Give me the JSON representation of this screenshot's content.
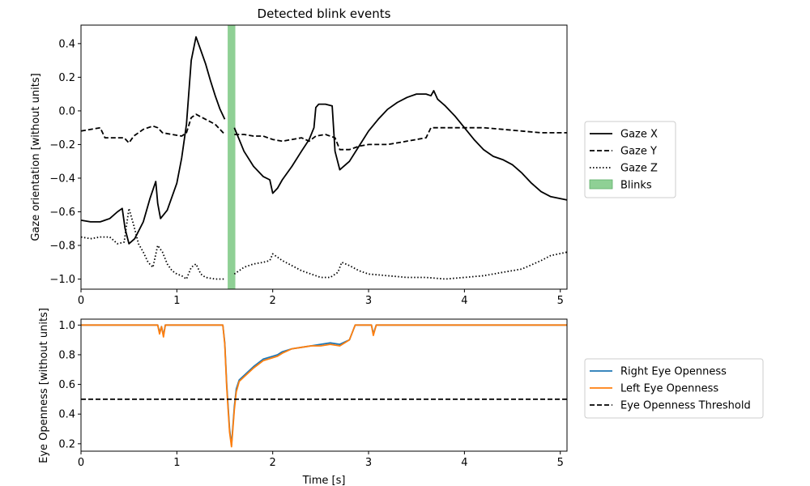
{
  "chart_data": [
    {
      "type": "line",
      "title": "Detected blink events",
      "xlabel": "",
      "ylabel": "Gaze orientation [without units]",
      "xlim": [
        0,
        5.07
      ],
      "ylim": [
        -1.06,
        0.51
      ],
      "xticks": [
        0,
        1,
        2,
        3,
        4,
        5
      ],
      "yticks": [
        -1.0,
        -0.8,
        -0.6,
        -0.4,
        -0.2,
        0.0,
        0.2,
        0.4
      ],
      "grid": false,
      "legend": "outside-right",
      "legend_labels": [
        "Gaze X",
        "Gaze Y",
        "Gaze Z",
        "Blinks"
      ],
      "series": [
        {
          "name": "Gaze X",
          "style": "solid",
          "color": "#000000",
          "segments": [
            [
              [
                0,
                -0.65
              ],
              [
                0.1,
                -0.66
              ],
              [
                0.2,
                -0.66
              ],
              [
                0.3,
                -0.64
              ],
              [
                0.38,
                -0.6
              ],
              [
                0.43,
                -0.58
              ],
              [
                0.46,
                -0.7
              ],
              [
                0.5,
                -0.79
              ],
              [
                0.56,
                -0.76
              ],
              [
                0.65,
                -0.66
              ],
              [
                0.72,
                -0.52
              ],
              [
                0.78,
                -0.42
              ],
              [
                0.8,
                -0.55
              ],
              [
                0.83,
                -0.64
              ],
              [
                0.9,
                -0.59
              ],
              [
                1.0,
                -0.43
              ],
              [
                1.05,
                -0.28
              ],
              [
                1.1,
                -0.08
              ],
              [
                1.15,
                0.3
              ],
              [
                1.2,
                0.44
              ],
              [
                1.25,
                0.36
              ],
              [
                1.3,
                0.28
              ],
              [
                1.35,
                0.18
              ],
              [
                1.4,
                0.09
              ],
              [
                1.45,
                0.01
              ],
              [
                1.5,
                -0.05
              ]
            ],
            [
              [
                1.6,
                -0.1
              ],
              [
                1.65,
                -0.17
              ],
              [
                1.7,
                -0.24
              ],
              [
                1.8,
                -0.33
              ],
              [
                1.9,
                -0.39
              ],
              [
                1.97,
                -0.41
              ],
              [
                2.0,
                -0.49
              ],
              [
                2.05,
                -0.46
              ],
              [
                2.1,
                -0.41
              ],
              [
                2.2,
                -0.33
              ],
              [
                2.3,
                -0.24
              ],
              [
                2.38,
                -0.17
              ],
              [
                2.43,
                -0.1
              ],
              [
                2.45,
                0.02
              ],
              [
                2.48,
                0.04
              ],
              [
                2.55,
                0.04
              ],
              [
                2.62,
                0.03
              ],
              [
                2.65,
                -0.24
              ],
              [
                2.7,
                -0.35
              ],
              [
                2.8,
                -0.3
              ],
              [
                2.9,
                -0.21
              ],
              [
                3.0,
                -0.12
              ],
              [
                3.1,
                -0.05
              ],
              [
                3.2,
                0.01
              ],
              [
                3.3,
                0.05
              ],
              [
                3.4,
                0.08
              ],
              [
                3.5,
                0.1
              ],
              [
                3.6,
                0.1
              ],
              [
                3.65,
                0.09
              ],
              [
                3.68,
                0.12
              ],
              [
                3.72,
                0.07
              ],
              [
                3.8,
                0.03
              ],
              [
                3.9,
                -0.03
              ],
              [
                4.0,
                -0.1
              ],
              [
                4.1,
                -0.17
              ],
              [
                4.2,
                -0.23
              ],
              [
                4.3,
                -0.27
              ],
              [
                4.4,
                -0.29
              ],
              [
                4.5,
                -0.32
              ],
              [
                4.6,
                -0.37
              ],
              [
                4.7,
                -0.43
              ],
              [
                4.8,
                -0.48
              ],
              [
                4.9,
                -0.51
              ],
              [
                5.07,
                -0.53
              ]
            ]
          ]
        },
        {
          "name": "Gaze Y",
          "style": "dashed",
          "color": "#000000",
          "segments": [
            [
              [
                0,
                -0.12
              ],
              [
                0.1,
                -0.11
              ],
              [
                0.2,
                -0.1
              ],
              [
                0.25,
                -0.16
              ],
              [
                0.35,
                -0.16
              ],
              [
                0.45,
                -0.16
              ],
              [
                0.5,
                -0.19
              ],
              [
                0.55,
                -0.15
              ],
              [
                0.65,
                -0.11
              ],
              [
                0.75,
                -0.09
              ],
              [
                0.8,
                -0.1
              ],
              [
                0.85,
                -0.13
              ],
              [
                0.95,
                -0.14
              ],
              [
                1.05,
                -0.15
              ],
              [
                1.1,
                -0.13
              ],
              [
                1.15,
                -0.04
              ],
              [
                1.2,
                -0.02
              ],
              [
                1.3,
                -0.05
              ],
              [
                1.4,
                -0.08
              ],
              [
                1.5,
                -0.14
              ]
            ],
            [
              [
                1.6,
                -0.14
              ],
              [
                1.7,
                -0.14
              ],
              [
                1.8,
                -0.15
              ],
              [
                1.9,
                -0.15
              ],
              [
                2.0,
                -0.17
              ],
              [
                2.1,
                -0.18
              ],
              [
                2.2,
                -0.17
              ],
              [
                2.3,
                -0.16
              ],
              [
                2.38,
                -0.18
              ],
              [
                2.45,
                -0.15
              ],
              [
                2.55,
                -0.14
              ],
              [
                2.65,
                -0.16
              ],
              [
                2.7,
                -0.23
              ],
              [
                2.8,
                -0.23
              ],
              [
                2.9,
                -0.21
              ],
              [
                3.0,
                -0.2
              ],
              [
                3.2,
                -0.2
              ],
              [
                3.4,
                -0.18
              ],
              [
                3.5,
                -0.17
              ],
              [
                3.6,
                -0.16
              ],
              [
                3.65,
                -0.1
              ],
              [
                3.8,
                -0.1
              ],
              [
                4.0,
                -0.1
              ],
              [
                4.2,
                -0.1
              ],
              [
                4.4,
                -0.11
              ],
              [
                4.6,
                -0.12
              ],
              [
                4.8,
                -0.13
              ],
              [
                5.07,
                -0.13
              ]
            ]
          ]
        },
        {
          "name": "Gaze Z",
          "style": "dotted",
          "color": "#000000",
          "segments": [
            [
              [
                0,
                -0.75
              ],
              [
                0.1,
                -0.76
              ],
              [
                0.2,
                -0.75
              ],
              [
                0.3,
                -0.75
              ],
              [
                0.38,
                -0.79
              ],
              [
                0.45,
                -0.78
              ],
              [
                0.5,
                -0.58
              ],
              [
                0.55,
                -0.68
              ],
              [
                0.6,
                -0.79
              ],
              [
                0.65,
                -0.84
              ],
              [
                0.7,
                -0.9
              ],
              [
                0.75,
                -0.93
              ],
              [
                0.8,
                -0.8
              ],
              [
                0.85,
                -0.84
              ],
              [
                0.9,
                -0.91
              ],
              [
                0.95,
                -0.95
              ],
              [
                1.0,
                -0.97
              ],
              [
                1.05,
                -0.98
              ],
              [
                1.1,
                -1.0
              ],
              [
                1.15,
                -0.93
              ],
              [
                1.2,
                -0.91
              ],
              [
                1.25,
                -0.97
              ],
              [
                1.3,
                -0.99
              ],
              [
                1.4,
                -1.0
              ],
              [
                1.5,
                -1.0
              ]
            ],
            [
              [
                1.6,
                -0.97
              ],
              [
                1.7,
                -0.93
              ],
              [
                1.8,
                -0.91
              ],
              [
                1.9,
                -0.9
              ],
              [
                1.97,
                -0.89
              ],
              [
                2.0,
                -0.85
              ],
              [
                2.1,
                -0.89
              ],
              [
                2.2,
                -0.92
              ],
              [
                2.3,
                -0.95
              ],
              [
                2.4,
                -0.97
              ],
              [
                2.5,
                -0.99
              ],
              [
                2.6,
                -0.99
              ],
              [
                2.68,
                -0.96
              ],
              [
                2.72,
                -0.9
              ],
              [
                2.8,
                -0.92
              ],
              [
                2.9,
                -0.95
              ],
              [
                3.0,
                -0.97
              ],
              [
                3.2,
                -0.98
              ],
              [
                3.4,
                -0.99
              ],
              [
                3.6,
                -0.99
              ],
              [
                3.8,
                -1.0
              ],
              [
                4.0,
                -0.99
              ],
              [
                4.2,
                -0.98
              ],
              [
                4.4,
                -0.96
              ],
              [
                4.6,
                -0.94
              ],
              [
                4.8,
                -0.89
              ],
              [
                4.9,
                -0.86
              ],
              [
                5.07,
                -0.84
              ]
            ]
          ]
        }
      ],
      "blink_spans": [
        [
          1.53,
          1.61
        ]
      ],
      "blink_color": "#8fd095"
    },
    {
      "type": "line",
      "title": "",
      "xlabel": "Time [s]",
      "ylabel": "Eye Openness [without units]",
      "xlim": [
        0,
        5.07
      ],
      "ylim": [
        0.15,
        1.04
      ],
      "xticks": [
        0,
        1,
        2,
        3,
        4,
        5
      ],
      "yticks": [
        0.2,
        0.4,
        0.6,
        0.8,
        1.0
      ],
      "grid": false,
      "legend": "outside-right",
      "legend_labels": [
        "Right Eye Openness",
        "Left Eye Openness",
        "Eye Openness Threshold"
      ],
      "threshold": 0.5,
      "series": [
        {
          "name": "Right Eye Openness",
          "color": "#1f77b4",
          "points": [
            [
              0,
              1.0
            ],
            [
              0.8,
              1.0
            ],
            [
              0.82,
              0.95
            ],
            [
              0.84,
              0.99
            ],
            [
              0.86,
              0.93
            ],
            [
              0.88,
              1.0
            ],
            [
              1.48,
              1.0
            ],
            [
              1.5,
              0.88
            ],
            [
              1.52,
              0.6
            ],
            [
              1.55,
              0.3
            ],
            [
              1.57,
              0.19
            ],
            [
              1.6,
              0.45
            ],
            [
              1.62,
              0.57
            ],
            [
              1.65,
              0.63
            ],
            [
              1.7,
              0.66
            ],
            [
              1.8,
              0.72
            ],
            [
              1.9,
              0.77
            ],
            [
              2.0,
              0.79
            ],
            [
              2.05,
              0.8
            ],
            [
              2.1,
              0.82
            ],
            [
              2.2,
              0.84
            ],
            [
              2.3,
              0.85
            ],
            [
              2.4,
              0.86
            ],
            [
              2.5,
              0.87
            ],
            [
              2.6,
              0.88
            ],
            [
              2.7,
              0.87
            ],
            [
              2.8,
              0.9
            ],
            [
              2.86,
              1.0
            ],
            [
              3.03,
              1.0
            ],
            [
              3.05,
              0.94
            ],
            [
              3.08,
              1.0
            ],
            [
              5.07,
              1.0
            ]
          ]
        },
        {
          "name": "Left Eye Openness",
          "color": "#ff7f0e",
          "points": [
            [
              0,
              1.0
            ],
            [
              0.8,
              1.0
            ],
            [
              0.82,
              0.94
            ],
            [
              0.84,
              0.99
            ],
            [
              0.86,
              0.92
            ],
            [
              0.88,
              1.0
            ],
            [
              1.48,
              1.0
            ],
            [
              1.5,
              0.87
            ],
            [
              1.52,
              0.58
            ],
            [
              1.55,
              0.28
            ],
            [
              1.57,
              0.18
            ],
            [
              1.6,
              0.43
            ],
            [
              1.62,
              0.55
            ],
            [
              1.65,
              0.62
            ],
            [
              1.7,
              0.65
            ],
            [
              1.8,
              0.71
            ],
            [
              1.9,
              0.76
            ],
            [
              2.0,
              0.78
            ],
            [
              2.05,
              0.79
            ],
            [
              2.1,
              0.81
            ],
            [
              2.2,
              0.84
            ],
            [
              2.3,
              0.85
            ],
            [
              2.4,
              0.86
            ],
            [
              2.5,
              0.86
            ],
            [
              2.6,
              0.87
            ],
            [
              2.7,
              0.86
            ],
            [
              2.8,
              0.9
            ],
            [
              2.86,
              1.0
            ],
            [
              3.03,
              1.0
            ],
            [
              3.05,
              0.93
            ],
            [
              3.08,
              1.0
            ],
            [
              5.07,
              1.0
            ]
          ]
        }
      ]
    }
  ]
}
